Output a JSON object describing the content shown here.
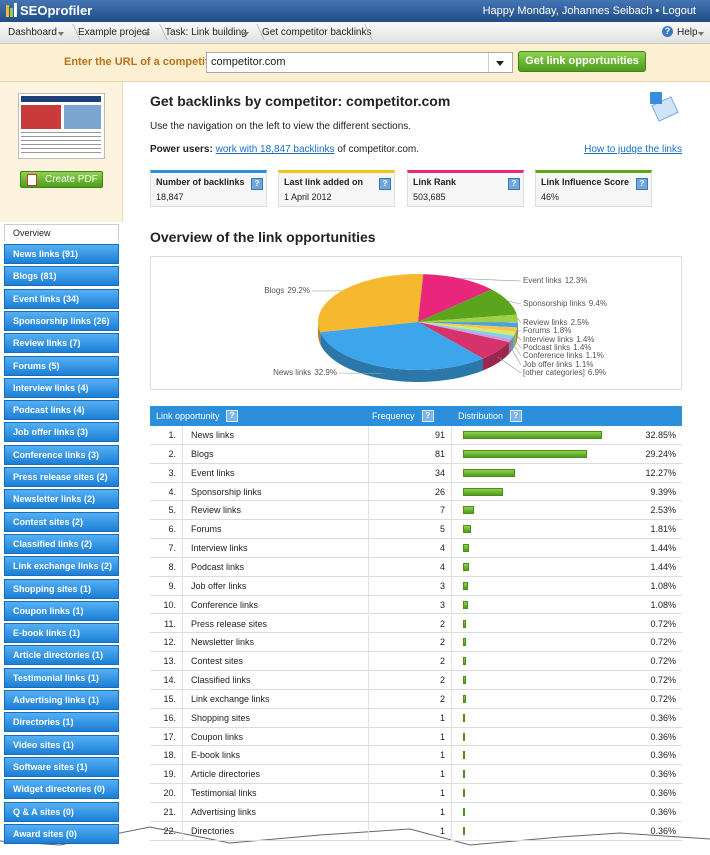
{
  "header": {
    "logo": "SEOprofiler",
    "greeting": "Happy Monday, Johannes Seibach",
    "separator": "•",
    "logout": "Logout"
  },
  "breadcrumbs": [
    "Dashboard",
    "Example project",
    "Task: Link building",
    "Get competitor backlinks"
  ],
  "help": "Help",
  "help_icon": "?",
  "url_form": {
    "label": "Enter the URL of a competitor:",
    "value": "competitor.com",
    "button": "Get link opportunities"
  },
  "sidebar": {
    "pdf_button": "Create PDF",
    "active_tab": "Overview",
    "nav": [
      "News links (91)",
      "Blogs (81)",
      "Event links (34)",
      "Sponsorship links (26)",
      "Review links (7)",
      "Forums (5)",
      "Interview links (4)",
      "Podcast links (4)",
      "Job offer links (3)",
      "Conference links (3)",
      "Press release sites (2)",
      "Newsletter links (2)",
      "Contest sites (2)",
      "Classified links (2)",
      "Link exchange links (2)",
      "Shopping sites (1)",
      "Coupon links (1)",
      "E-book links (1)",
      "Article directories (1)",
      "Testimonial links (1)",
      "Advertising links (1)",
      "Directories (1)",
      "Video sites (1)",
      "Software sites (1)",
      "Widget directories (0)",
      "Q & A sites (0)",
      "Award sites (0)"
    ]
  },
  "main": {
    "title": "Get backlinks by competitor: competitor.com",
    "intro": "Use the navigation on the left to view the different sections.",
    "power_label": "Power users:",
    "power_link": "work with 18,847 backlinks",
    "power_suffix": "of competitor.com.",
    "judge_link": "How to judge the links",
    "stats": [
      {
        "label": "Number of backlinks",
        "value": "18,847",
        "color": "#2b8fdc"
      },
      {
        "label": "Last link added on",
        "value": "1 April 2012",
        "color": "#f0c419"
      },
      {
        "label": "Link Rank",
        "value": "503,685",
        "color": "#e8277a"
      },
      {
        "label": "Link Influence Score",
        "value": "46%",
        "color": "#5fa81a"
      }
    ],
    "section_title": "Overview of the link opportunities"
  },
  "chart_data": {
    "type": "pie",
    "categories": [
      "Event links",
      "Sponsorship links",
      "Review links",
      "Forums",
      "Interview links",
      "Podcast links",
      "Conference links",
      "Job offer links",
      "[other categories]",
      "News links",
      "Blogs"
    ],
    "values": [
      12.3,
      9.4,
      2.5,
      1.8,
      1.4,
      1.4,
      1.1,
      1.1,
      6.9,
      32.9,
      29.2
    ],
    "value_labels": [
      "12.3%",
      "9.4%",
      "2.5%",
      "1.8%",
      "1.4%",
      "1.4%",
      "1.1%",
      "1.1%",
      "6.9%",
      "32.9%",
      "29.2%"
    ],
    "colors": [
      "#e8267c",
      "#5aa51c",
      "#9fd045",
      "#4aa3df",
      "#f7c443",
      "#d8e86a",
      "#7fd0f0",
      "#c9a0dc",
      "#d6336c",
      "#3da5ec",
      "#f5b82e"
    ]
  },
  "table": {
    "columns": [
      "Link opportunity",
      "Frequency",
      "Distribution"
    ],
    "rows": [
      {
        "rank": "1.",
        "name": "News links",
        "frequency": 91,
        "share": 32.85,
        "share_label": "32.85%"
      },
      {
        "rank": "2.",
        "name": "Blogs",
        "frequency": 81,
        "share": 29.24,
        "share_label": "29.24%"
      },
      {
        "rank": "3.",
        "name": "Event links",
        "frequency": 34,
        "share": 12.27,
        "share_label": "12.27%"
      },
      {
        "rank": "4.",
        "name": "Sponsorship links",
        "frequency": 26,
        "share": 9.39,
        "share_label": "9.39%"
      },
      {
        "rank": "5.",
        "name": "Review links",
        "frequency": 7,
        "share": 2.53,
        "share_label": "2.53%"
      },
      {
        "rank": "6.",
        "name": "Forums",
        "frequency": 5,
        "share": 1.81,
        "share_label": "1.81%"
      },
      {
        "rank": "7.",
        "name": "Interview links",
        "frequency": 4,
        "share": 1.44,
        "share_label": "1.44%"
      },
      {
        "rank": "8.",
        "name": "Podcast links",
        "frequency": 4,
        "share": 1.44,
        "share_label": "1.44%"
      },
      {
        "rank": "9.",
        "name": "Job offer links",
        "frequency": 3,
        "share": 1.08,
        "share_label": "1.08%"
      },
      {
        "rank": "10.",
        "name": "Conference links",
        "frequency": 3,
        "share": 1.08,
        "share_label": "1.08%"
      },
      {
        "rank": "11.",
        "name": "Press release sites",
        "frequency": 2,
        "share": 0.72,
        "share_label": "0.72%"
      },
      {
        "rank": "12.",
        "name": "Newsletter links",
        "frequency": 2,
        "share": 0.72,
        "share_label": "0.72%"
      },
      {
        "rank": "13.",
        "name": "Contest sites",
        "frequency": 2,
        "share": 0.72,
        "share_label": "0.72%"
      },
      {
        "rank": "14.",
        "name": "Classified links",
        "frequency": 2,
        "share": 0.72,
        "share_label": "0.72%"
      },
      {
        "rank": "15.",
        "name": "Link exchange links",
        "frequency": 2,
        "share": 0.72,
        "share_label": "0.72%"
      },
      {
        "rank": "16.",
        "name": "Shopping sites",
        "frequency": 1,
        "share": 0.36,
        "share_label": "0.36%"
      },
      {
        "rank": "17.",
        "name": "Coupon links",
        "frequency": 1,
        "share": 0.36,
        "share_label": "0.36%"
      },
      {
        "rank": "18.",
        "name": "E-book links",
        "frequency": 1,
        "share": 0.36,
        "share_label": "0.36%"
      },
      {
        "rank": "19.",
        "name": "Article directories",
        "frequency": 1,
        "share": 0.36,
        "share_label": "0.36%"
      },
      {
        "rank": "20.",
        "name": "Testimonial links",
        "frequency": 1,
        "share": 0.36,
        "share_label": "0.36%"
      },
      {
        "rank": "21.",
        "name": "Advertising links",
        "frequency": 1,
        "share": 0.36,
        "share_label": "0.36%"
      },
      {
        "rank": "22.",
        "name": "Directories",
        "frequency": 1,
        "share": 0.36,
        "share_label": "0.36%"
      }
    ]
  }
}
